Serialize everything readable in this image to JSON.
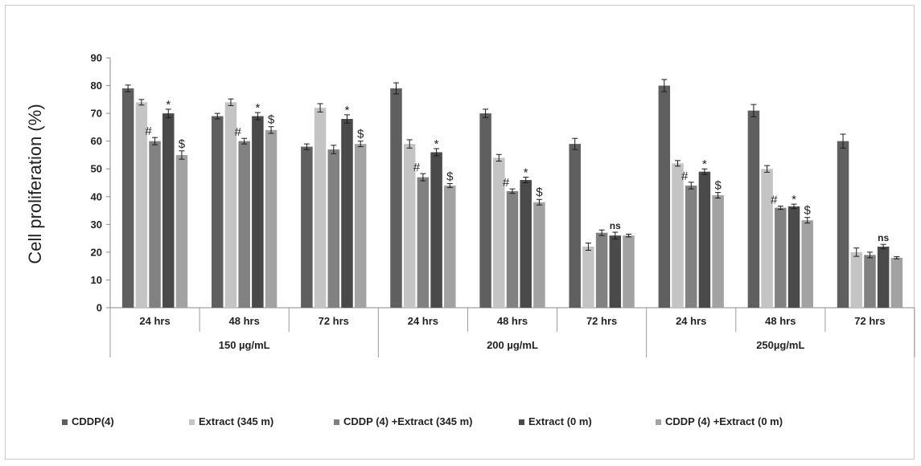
{
  "chart_data": {
    "type": "bar",
    "ylabel": "Cell proliferation (%)",
    "ylim": [
      0,
      90
    ],
    "yticks": [
      0,
      10,
      20,
      30,
      40,
      50,
      60,
      70,
      80,
      90
    ],
    "grid": false,
    "legend_position": "bottom",
    "groups": [
      {
        "label": "150 µg/mL",
        "categories": [
          "24 hrs",
          "48 hrs",
          "72 hrs"
        ]
      },
      {
        "label": "200 µg/mL",
        "categories": [
          "24 hrs",
          "48 hrs",
          "72 hrs"
        ]
      },
      {
        "label": "250µg/mL",
        "categories": [
          "24 hrs",
          "48 hrs",
          "72 hrs"
        ]
      }
    ],
    "categories": [
      "24 hrs",
      "48 hrs",
      "72 hrs",
      "24 hrs",
      "48 hrs",
      "72 hrs",
      "24 hrs",
      "48 hrs",
      "72 hrs"
    ],
    "series": [
      {
        "name": "CDDP(4)",
        "color": "#5f5f5f",
        "values": [
          79,
          69,
          58,
          79,
          70,
          59,
          80,
          71,
          60
        ],
        "errors": [
          1.2,
          1.0,
          1.0,
          2.0,
          1.5,
          2.0,
          2.2,
          2.2,
          2.5
        ]
      },
      {
        "name": "Extract (345 m)",
        "color": "#c4c4c4",
        "values": [
          74,
          74,
          72,
          59,
          54,
          22,
          52,
          50,
          20
        ],
        "errors": [
          1.0,
          1.2,
          1.5,
          1.5,
          1.2,
          1.3,
          1.0,
          1.2,
          1.5
        ]
      },
      {
        "name": "CDDP (4) +Extract (345 m)",
        "color": "#818181",
        "values": [
          60,
          60,
          57,
          47,
          42,
          27,
          44,
          36,
          19
        ],
        "errors": [
          1.3,
          1.0,
          1.5,
          1.3,
          0.8,
          1.0,
          1.2,
          0.6,
          1.0
        ]
      },
      {
        "name": "Extract (0 m)",
        "color": "#4a4a4a",
        "values": [
          70,
          69,
          68,
          56,
          46,
          26,
          49,
          36.5,
          22
        ],
        "errors": [
          1.5,
          1.3,
          1.5,
          1.3,
          1.0,
          1.2,
          1.0,
          0.8,
          0.8
        ]
      },
      {
        "name": "CDDP (4) +Extract (0 m)",
        "color": "#a2a2a2",
        "values": [
          55,
          64,
          59,
          44,
          38,
          26,
          40.5,
          31.5,
          18
        ],
        "errors": [
          1.5,
          1.2,
          1.0,
          0.7,
          1.0,
          0.5,
          1.0,
          1.0,
          0.4
        ]
      }
    ],
    "annotations": [
      {
        "category": 0,
        "series": 2,
        "text": "#"
      },
      {
        "category": 0,
        "series": 3,
        "text": "*"
      },
      {
        "category": 0,
        "series": 4,
        "text": "$"
      },
      {
        "category": 1,
        "series": 2,
        "text": "#"
      },
      {
        "category": 1,
        "series": 3,
        "text": "*"
      },
      {
        "category": 1,
        "series": 4,
        "text": "$"
      },
      {
        "category": 2,
        "series": 3,
        "text": "*"
      },
      {
        "category": 2,
        "series": 4,
        "text": "$"
      },
      {
        "category": 3,
        "series": 2,
        "text": "#"
      },
      {
        "category": 3,
        "series": 3,
        "text": "*"
      },
      {
        "category": 3,
        "series": 4,
        "text": "$"
      },
      {
        "category": 4,
        "series": 2,
        "text": "#"
      },
      {
        "category": 4,
        "series": 3,
        "text": "*"
      },
      {
        "category": 4,
        "series": 4,
        "text": "$"
      },
      {
        "category": 5,
        "series": 3,
        "text": "ns"
      },
      {
        "category": 6,
        "series": 2,
        "text": "#"
      },
      {
        "category": 6,
        "series": 3,
        "text": "*"
      },
      {
        "category": 6,
        "series": 4,
        "text": "$"
      },
      {
        "category": 7,
        "series": 2,
        "text": "#"
      },
      {
        "category": 7,
        "series": 3,
        "text": "*"
      },
      {
        "category": 7,
        "series": 4,
        "text": "$"
      },
      {
        "category": 8,
        "series": 3,
        "text": "ns"
      }
    ]
  }
}
